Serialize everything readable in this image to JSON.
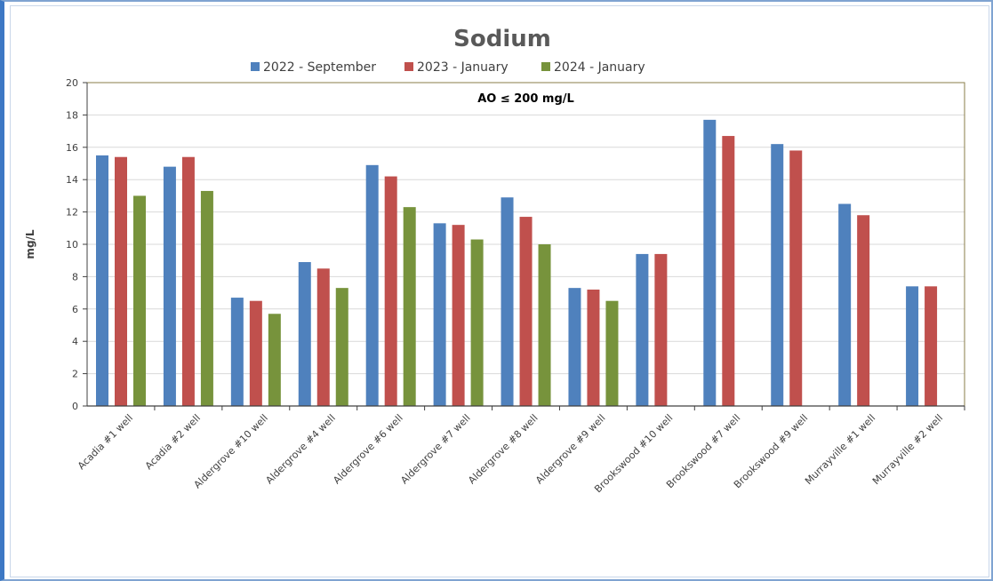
{
  "chart_data": {
    "type": "bar",
    "title": "Sodium",
    "ylabel": "mg/L",
    "xlabel": "",
    "ylim": [
      0,
      20
    ],
    "yticks": [
      0,
      2,
      4,
      6,
      8,
      10,
      12,
      14,
      16,
      18,
      20
    ],
    "grid": true,
    "legend_position": "top",
    "annotation": "AO ≤ 200 mg/L",
    "categories": [
      "Acadia #1 well",
      "Acadia #2 well",
      "Aldergrove #10 well",
      "Aldergrove #4 well",
      "Aldergrove #6 well",
      "Aldergrove #7 well",
      "Aldergrove #8 well",
      "Aldergrove #9 well",
      "Brookswood #10 well",
      "Brookswood #7 well",
      "Brookswood #9 well",
      "Murrayville #1 well",
      "Murrayville #2 well"
    ],
    "series": [
      {
        "name": "2022 - September",
        "color": "#4f81bd",
        "values": [
          15.5,
          14.8,
          6.7,
          8.9,
          14.9,
          11.3,
          12.9,
          7.3,
          9.4,
          17.7,
          16.2,
          12.5,
          7.4
        ]
      },
      {
        "name": "2023 - January",
        "color": "#c0504d",
        "values": [
          15.4,
          15.4,
          6.5,
          8.5,
          14.2,
          11.2,
          11.7,
          7.2,
          9.4,
          16.7,
          15.8,
          11.8,
          7.4
        ]
      },
      {
        "name": "2024 - January",
        "color": "#77933c",
        "values": [
          13.0,
          13.3,
          5.7,
          7.3,
          12.3,
          10.3,
          10.0,
          6.5,
          null,
          null,
          null,
          null,
          null
        ]
      }
    ]
  }
}
